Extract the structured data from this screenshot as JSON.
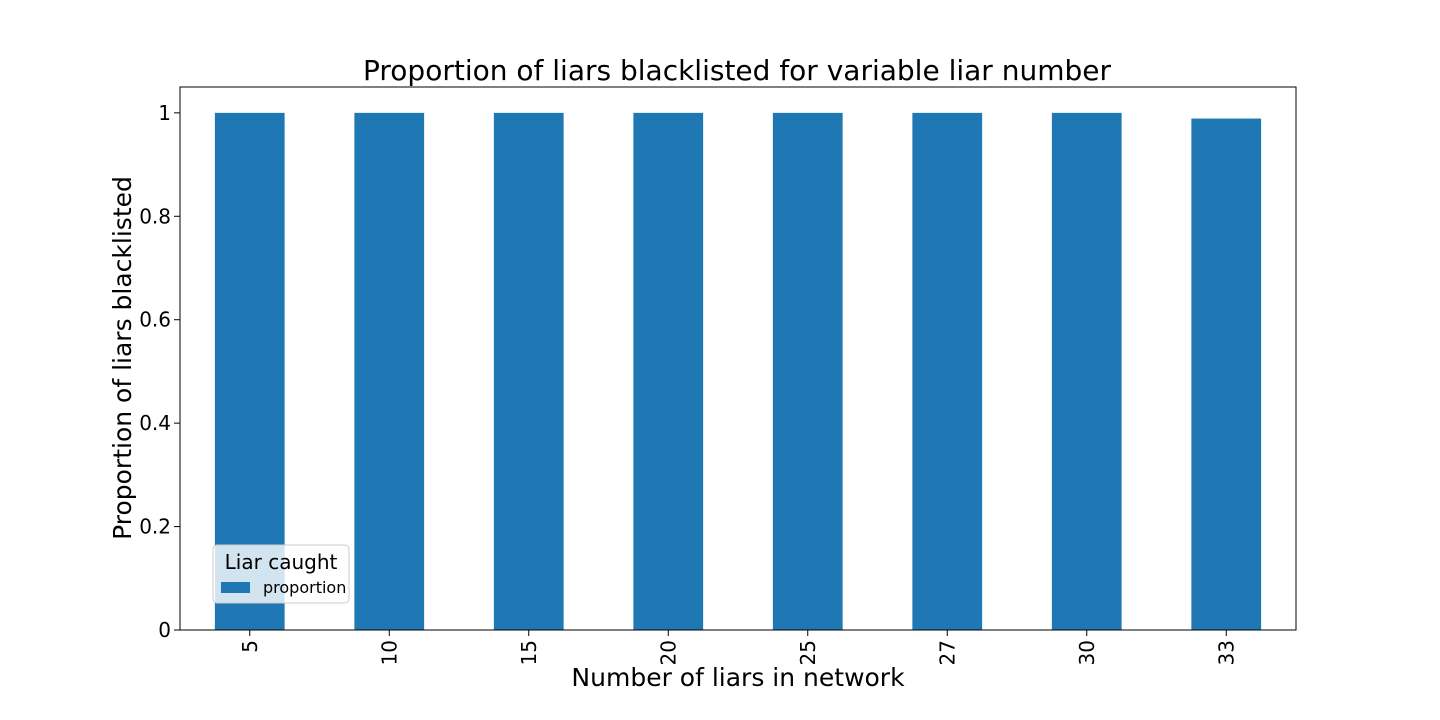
{
  "chart_data": {
    "type": "bar",
    "title": "Proportion of liars blacklisted for variable liar number",
    "xlabel": "Number of liars in network",
    "ylabel": "Proportion of liars blacklisted",
    "categories": [
      "5",
      "10",
      "15",
      "20",
      "25",
      "27",
      "30",
      "33"
    ],
    "series": [
      {
        "name": "proportion",
        "color": "#1f77b4",
        "values": [
          1.0,
          1.0,
          1.0,
          1.0,
          1.0,
          1.0,
          1.0,
          0.989
        ]
      }
    ],
    "ylim": [
      0,
      1.05
    ],
    "yticks": [
      {
        "value": 0,
        "label": "0"
      },
      {
        "value": 0.2,
        "label": "0.2"
      },
      {
        "value": 0.4,
        "label": "0.4"
      },
      {
        "value": 0.6,
        "label": "0.6"
      },
      {
        "value": 0.8,
        "label": "0.8"
      },
      {
        "value": 1.0,
        "label": "1"
      }
    ],
    "x_tick_rotation": "vertical",
    "grid": false,
    "legend": {
      "title": "Liar caught",
      "placement": "lower-left"
    }
  }
}
